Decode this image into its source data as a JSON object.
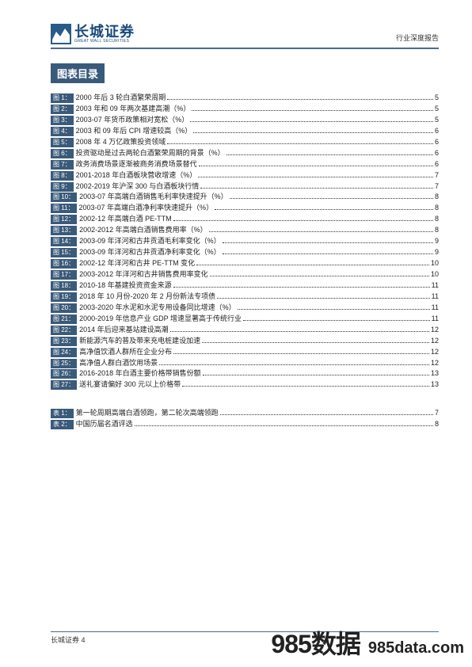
{
  "header": {
    "logo_cn": "长城证券",
    "logo_en": "GREAT WALL SECURITIES",
    "report_type": "行业深度报告"
  },
  "section_title": "图表目录",
  "figures": [
    {
      "tag": "图 1：",
      "title": "2000 年后 3 轮白酒繁荣周期",
      "page": "5"
    },
    {
      "tag": "图 2：",
      "title": "2003 年和 09 年两次基建高潮（%）",
      "page": "5"
    },
    {
      "tag": "图 3：",
      "title": "2003-07 年货币政策相对宽松（%）",
      "page": "5"
    },
    {
      "tag": "图 4：",
      "title": "2003 和 09 年后 CPI 增速较高（%）",
      "page": "6"
    },
    {
      "tag": "图 5：",
      "title": "2008 年 4 万亿政策投资领域",
      "page": "6"
    },
    {
      "tag": "图 6：",
      "title": "投资驱动是过去两轮白酒繁荣周期的背景（%）",
      "page": "6"
    },
    {
      "tag": "图 7：",
      "title": "政务消费场景逐渐被商务消费场景替代",
      "page": "6"
    },
    {
      "tag": "图 8：",
      "title": "2001-2018 年白酒板块营收增速（%）",
      "page": "7"
    },
    {
      "tag": "图 9：",
      "title": "2002-2019 年沪深 300 与白酒板块行情",
      "page": "7"
    },
    {
      "tag": "图 10：",
      "title": "2003-07 年高端白酒销售毛利率快速提升（%）",
      "page": "8"
    },
    {
      "tag": "图 11：",
      "title": "2003-07 年高端白酒净利率快速提升（%）",
      "page": "8"
    },
    {
      "tag": "图 12：",
      "title": "2002-12 年高端白酒 PE-TTM",
      "page": "8"
    },
    {
      "tag": "图 13：",
      "title": "2002-2012 年高端白酒销售费用率（%）",
      "page": "8"
    },
    {
      "tag": "图 14：",
      "title": "2003-09 年洋河和古井贡酒毛利率变化（%）",
      "page": "9"
    },
    {
      "tag": "图 15：",
      "title": "2003-09 年洋河和古井贡酒净利率变化（%）",
      "page": "9"
    },
    {
      "tag": "图 16：",
      "title": "2002-12 年洋河和古井 PE-TTM 变化",
      "page": "10"
    },
    {
      "tag": "图 17：",
      "title": "2003-2012 年洋河和古井销售费用率变化",
      "page": "10"
    },
    {
      "tag": "图 18：",
      "title": "2010-18 年基建投资资金来源",
      "page": "11"
    },
    {
      "tag": "图 19：",
      "title": "2018 年 10 月份-2020 年 2 月份新法专项债",
      "page": "11"
    },
    {
      "tag": "图 20：",
      "title": "2003-2020 年水泥和水泥专用设备同比增速（%）",
      "page": "11"
    },
    {
      "tag": "图 21：",
      "title": "2000-2019 年信息产业 GDP 增速显著高于传统行业",
      "page": "11"
    },
    {
      "tag": "图 22：",
      "title": "2014 年后迎来基站建设高潮",
      "page": "12"
    },
    {
      "tag": "图 23：",
      "title": "新能源汽车的普及带来充电桩建设加速",
      "page": "12"
    },
    {
      "tag": "图 24：",
      "title": "高净值饮酒人群所在企业分布",
      "page": "12"
    },
    {
      "tag": "图 25：",
      "title": "高净值人群白酒饮用场景",
      "page": "12"
    },
    {
      "tag": "图 26：",
      "title": "2016-2018 年白酒主要价格带销售份额",
      "page": "13"
    },
    {
      "tag": "图 27：",
      "title": "送礼宴请偏好 300 元以上价格带",
      "page": "13"
    }
  ],
  "tables": [
    {
      "tag": "表 1：",
      "title": "第一轮周期高端白酒领跑，第二轮次高端领跑",
      "page": "7"
    },
    {
      "tag": "表 2：",
      "title": "中国历届名酒评选",
      "page": "8"
    }
  ],
  "footer": {
    "text": "长城证券 4"
  },
  "watermark": {
    "big": "985数据",
    "small": "985data.com"
  },
  "colors": {
    "brand": "#3a5a7a",
    "line": "#4a6a8a",
    "text": "#222222",
    "bg": "#ffffff"
  }
}
